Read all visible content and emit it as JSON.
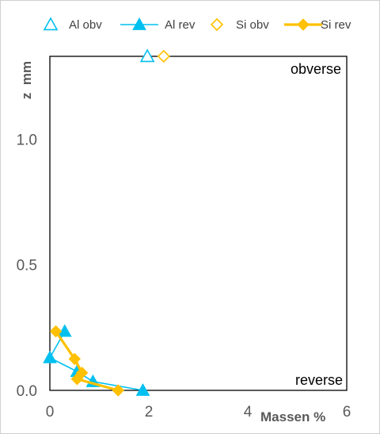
{
  "chart_data": {
    "type": "scatter",
    "title": "",
    "xlabel": "Massen %",
    "ylabel": "z  mm",
    "xlim": [
      0,
      6
    ],
    "ylim": [
      0,
      1.33
    ],
    "x_ticks": [
      "0",
      "2",
      "4",
      "6"
    ],
    "y_ticks": [
      "0.0",
      "0.5",
      "1.0"
    ],
    "grid": false,
    "legend_position": "top",
    "annotations": [
      "obverse",
      "reverse"
    ],
    "series": [
      {
        "name": "Al obv",
        "marker": "triangle-open",
        "line": false,
        "color": "#00c0f0",
        "points": [
          {
            "x": 1.97,
            "y": 1.33
          }
        ]
      },
      {
        "name": "Al rev",
        "marker": "triangle-filled",
        "line": true,
        "color": "#00c0f0",
        "points": [
          {
            "x": 0.3,
            "y": 0.235
          },
          {
            "x": 0.0,
            "y": 0.13
          },
          {
            "x": 0.55,
            "y": 0.075
          },
          {
            "x": 0.87,
            "y": 0.035
          },
          {
            "x": 1.88,
            "y": 0.0
          }
        ]
      },
      {
        "name": "Si obv",
        "marker": "diamond-open",
        "line": false,
        "color": "#ffc000",
        "points": [
          {
            "x": 2.3,
            "y": 1.33
          }
        ]
      },
      {
        "name": "Si rev",
        "marker": "diamond-filled",
        "line": true,
        "color": "#ffc000",
        "points": [
          {
            "x": 0.12,
            "y": 0.235
          },
          {
            "x": 0.5,
            "y": 0.125
          },
          {
            "x": 0.65,
            "y": 0.07
          },
          {
            "x": 0.55,
            "y": 0.045
          },
          {
            "x": 1.38,
            "y": 0.0
          }
        ]
      }
    ]
  }
}
